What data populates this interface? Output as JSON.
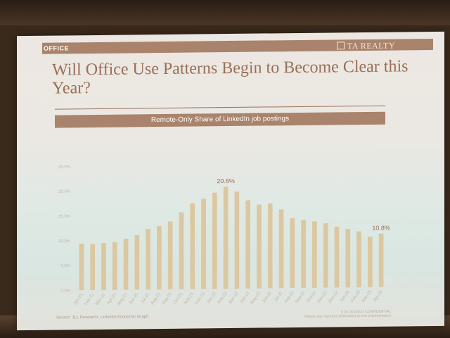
{
  "slide": {
    "section_label": "OFFICE",
    "brand": "TA REALTY",
    "title": "Will Office Use Patterns Begin to Become Clear this Year?",
    "source": "Source: JLL Research, LinkedIn Economic Graph",
    "footer_line1": "#.28 | 8/13/23 | CONFIDENTIAL",
    "footer_line2": "Please see important information at end of presentation"
  },
  "colors": {
    "accent": "#a9836b",
    "title": "#9a7058",
    "bar": "#dcc7a0",
    "axis_text": "#c2b5a5"
  },
  "chart_data": {
    "type": "bar",
    "title": "Remote-Only Share of LinkedIn job postings",
    "xlabel": "",
    "ylabel": "",
    "ylim": [
      0,
      25
    ],
    "y_ticks": [
      "0.0%",
      "5.0%",
      "10.0%",
      "15.0%",
      "20.0%",
      "25.0%"
    ],
    "categories": [
      "Jan-21",
      "Feb-21",
      "Mar-21",
      "Apr-21",
      "May-21",
      "Jun-21",
      "Jul-21",
      "Aug-21",
      "Sep-21",
      "Oct-21",
      "Nov-21",
      "Dec-21",
      "Jan-22",
      "Feb-22",
      "Mar-22",
      "Apr-22",
      "May-22",
      "Jun-22",
      "Jul-22",
      "Aug-22",
      "Sep-22",
      "Oct-22",
      "Nov-22",
      "Dec-22",
      "Jan-23",
      "Feb-23",
      "Mar-23",
      "Apr-23"
    ],
    "values": [
      9.4,
      9.3,
      9.5,
      9.6,
      10.3,
      11.0,
      12.2,
      12.8,
      13.7,
      15.5,
      17.3,
      18.2,
      19.4,
      20.6,
      19.6,
      17.8,
      16.9,
      17.1,
      15.9,
      14.1,
      13.7,
      13.4,
      13.0,
      12.3,
      11.8,
      11.3,
      10.2,
      10.8
    ],
    "data_labels": [
      {
        "index": 13,
        "text": "20.6%"
      },
      {
        "index": 27,
        "text": "10.8%"
      }
    ],
    "grid": false,
    "legend": "none"
  }
}
